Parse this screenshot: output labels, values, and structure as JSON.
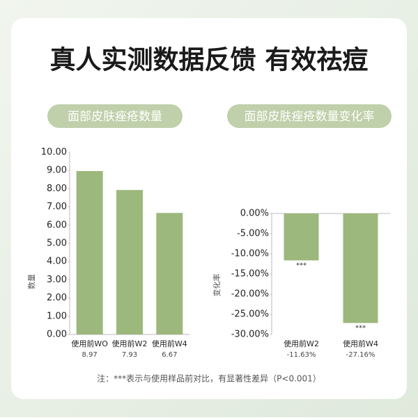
{
  "header": {
    "title": "真人实测数据反馈 有效祛痘"
  },
  "chart_data": [
    {
      "type": "bar",
      "title": "面部皮肤痤疮数量",
      "y_label": "数量",
      "categories": [
        "使用前WO",
        "使用前W2",
        "使用前W4"
      ],
      "values": [
        8.97,
        7.93,
        6.67
      ],
      "color": "#9cb87c",
      "ylim": [
        0,
        10
      ],
      "yticks": [
        {
          "value": 0,
          "label": "0.00"
        },
        {
          "value": 1,
          "label": "1.00"
        },
        {
          "value": 2,
          "label": "2.00"
        },
        {
          "value": 3,
          "label": "3.00"
        },
        {
          "value": 4,
          "label": "4.00"
        },
        {
          "value": 5,
          "label": "5.00"
        },
        {
          "value": 6,
          "label": "6.00"
        },
        {
          "value": 7,
          "label": "7.00"
        },
        {
          "value": 8,
          "label": "8.00"
        },
        {
          "value": 9,
          "label": "9.00"
        },
        {
          "value": 10,
          "label": "10.00"
        }
      ]
    },
    {
      "type": "bar",
      "title": "面部皮肤痤疮数量变化率",
      "y_label": "变化率",
      "categories": [
        "使用前W2",
        "使用前W4"
      ],
      "values": [
        -11.63,
        -27.16
      ],
      "value_labels": [
        "-11.63%",
        "-27.16%"
      ],
      "annotations": [
        "***",
        "***"
      ],
      "color": "#9cb87c",
      "ylim": [
        -30,
        0
      ],
      "yticks": [
        {
          "value": 0,
          "label": "0.00%"
        },
        {
          "value": -5,
          "label": "-5.00%"
        },
        {
          "value": -10,
          "label": "-10.00%"
        },
        {
          "value": -15,
          "label": "-15.00%"
        },
        {
          "value": -20,
          "label": "-20.00%"
        },
        {
          "value": -25,
          "label": "-25.00%"
        },
        {
          "value": -30,
          "label": "-30.00%"
        }
      ]
    }
  ],
  "footnote": "注：***表示与使用样品前对比，有显著性差异（P<0.001）"
}
